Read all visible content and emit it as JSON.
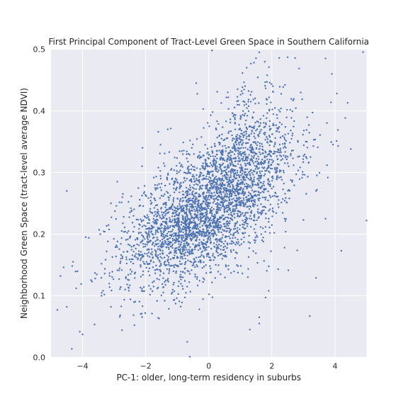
{
  "chart_data": {
    "type": "scatter",
    "title": "First Principal Component of Tract-Level Green Space in Southern California",
    "xlabel": "PC-1: older, long-term residency in suburbs",
    "ylabel": "Neighborhood Green Space (tract-level average NDVI)",
    "xlim": [
      -5,
      5
    ],
    "ylim": [
      0.0,
      0.5
    ],
    "xticks": [
      -4,
      -2,
      0,
      2,
      4
    ],
    "yticks": [
      0.0,
      0.1,
      0.2,
      0.3,
      0.4,
      0.5
    ],
    "xtick_labels": [
      "−4",
      "−2",
      "0",
      "2",
      "4"
    ],
    "ytick_labels": [
      "0.0",
      "0.1",
      "0.2",
      "0.3",
      "0.4",
      "0.5"
    ],
    "grid": true,
    "background_color": "#eaeaf2",
    "point_color": "#4c72b0",
    "points": [
      [
        -4.5,
        0.27
      ],
      [
        -4.5,
        0.082
      ],
      [
        -4.8,
        0.077
      ],
      [
        -4.2,
        0.112
      ],
      [
        -3.9,
        0.195
      ],
      [
        -3.8,
        0.194
      ],
      [
        -3.3,
        0.204
      ],
      [
        -3.1,
        0.25
      ],
      [
        -2.9,
        0.285
      ],
      [
        -2.1,
        0.34
      ],
      [
        -1.6,
        0.366
      ],
      [
        -1.3,
        0.37
      ],
      [
        -0.4,
        0.445
      ],
      [
        0.1,
        0.498
      ],
      [
        0.6,
        0.43
      ],
      [
        1.2,
        0.47
      ],
      [
        1.6,
        0.495
      ],
      [
        2.5,
        0.487
      ],
      [
        3.7,
        0.485
      ],
      [
        3.9,
        0.46
      ],
      [
        4.4,
        0.413
      ],
      [
        4.1,
        0.343
      ],
      [
        4.5,
        0.338
      ],
      [
        4.2,
        0.173
      ],
      [
        5.0,
        0.222
      ],
      [
        3.2,
        0.067
      ],
      [
        1.3,
        0.045
      ],
      [
        1.6,
        0.055
      ],
      [
        -0.6,
        0.001
      ],
      [
        -0.3,
        0.078
      ],
      [
        -1.8,
        0.071
      ],
      [
        -1.4,
        0.092
      ],
      [
        -2.1,
        0.083
      ],
      [
        -3.1,
        0.082
      ],
      [
        -3.4,
        0.1
      ],
      [
        1.6,
        0.065
      ],
      [
        2.2,
        0.143
      ],
      [
        3.4,
        0.129
      ],
      [
        3.7,
        0.225
      ],
      [
        2.4,
        0.178
      ],
      [
        1.8,
        0.097
      ],
      [
        1.9,
        0.108
      ],
      [
        3.4,
        0.27
      ],
      [
        3.0,
        0.223
      ],
      [
        -4.6,
        0.146
      ],
      [
        -4.3,
        0.155
      ],
      [
        -4.7,
        0.132
      ],
      [
        -3.7,
        0.123
      ],
      [
        -3.6,
        0.128
      ],
      [
        -3.3,
        0.136
      ]
    ]
  }
}
